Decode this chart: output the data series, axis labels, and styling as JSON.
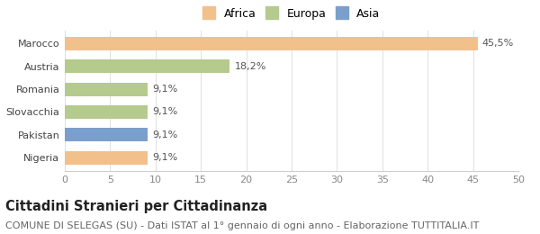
{
  "categories": [
    "Nigeria",
    "Pakistan",
    "Slovacchia",
    "Romania",
    "Austria",
    "Marocco"
  ],
  "values": [
    9.1,
    9.1,
    9.1,
    9.1,
    18.2,
    45.5
  ],
  "labels": [
    "9,1%",
    "9,1%",
    "9,1%",
    "9,1%",
    "18,2%",
    "45,5%"
  ],
  "colors": [
    "#f2c08a",
    "#7b9fcc",
    "#b5ca8d",
    "#b5ca8d",
    "#b5ca8d",
    "#f2c08a"
  ],
  "legend_items": [
    {
      "label": "Africa",
      "color": "#f2c08a"
    },
    {
      "label": "Europa",
      "color": "#b5ca8d"
    },
    {
      "label": "Asia",
      "color": "#7b9fcc"
    }
  ],
  "xlim": [
    0,
    50
  ],
  "xticks": [
    0,
    5,
    10,
    15,
    20,
    25,
    30,
    35,
    40,
    45,
    50
  ],
  "title": "Cittadini Stranieri per Cittadinanza",
  "subtitle": "COMUNE DI SELEGAS (SU) - Dati ISTAT al 1° gennaio di ogni anno - Elaborazione TUTTITALIA.IT",
  "background_color": "#ffffff",
  "bar_height": 0.6,
  "title_fontsize": 10.5,
  "subtitle_fontsize": 8,
  "tick_fontsize": 8,
  "label_fontsize": 8,
  "legend_fontsize": 9
}
